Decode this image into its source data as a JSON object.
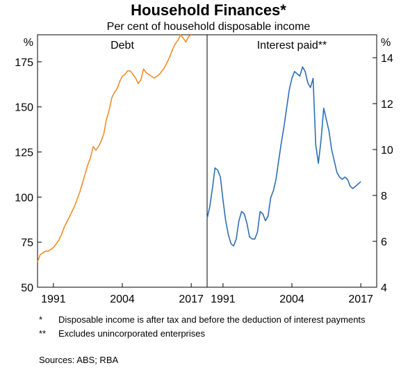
{
  "chart_data": {
    "type": "line",
    "title": "Household Finances*",
    "subtitle": "Per cent of household disposable income",
    "left_axis": {
      "unit": "%",
      "ylim": [
        50,
        190
      ],
      "ticks": [
        50,
        75,
        100,
        125,
        150,
        175
      ]
    },
    "right_axis": {
      "unit": "%",
      "ylim": [
        4,
        15
      ],
      "ticks": [
        4,
        6,
        8,
        10,
        12,
        14
      ]
    },
    "panels": [
      {
        "title": "Debt",
        "axis": "left",
        "xlim": [
          1988,
          2020
        ],
        "x_ticks": [
          "1991",
          "2004",
          "2017"
        ],
        "color": "#f28c28",
        "series": [
          {
            "x": [
              1988.0,
              1988.5,
              1989.0,
              1989.5,
              1990.0,
              1990.5,
              1991.0,
              1991.5,
              1992.0,
              1992.5,
              1993.0,
              1993.5,
              1994.0,
              1994.5,
              1995.0,
              1995.5,
              1996.0,
              1996.5,
              1997.0,
              1997.5,
              1998.0,
              1998.5,
              1999.0,
              1999.5,
              2000.0,
              2000.5,
              2001.0,
              2001.5,
              2002.0,
              2002.5,
              2003.0,
              2003.5,
              2004.0,
              2004.5,
              2005.0,
              2005.5,
              2006.0,
              2006.5,
              2007.0,
              2007.5,
              2008.0,
              2008.5,
              2009.0,
              2009.5,
              2010.0,
              2010.5,
              2011.0,
              2011.5,
              2012.0,
              2012.5,
              2013.0,
              2013.5,
              2014.0,
              2014.5,
              2015.0,
              2015.5,
              2016.0,
              2016.5,
              2017.0
            ],
            "values": [
              64,
              68,
              69,
              70,
              70,
              71,
              72,
              74,
              76,
              79,
              83,
              86,
              89,
              92,
              95,
              99,
              103,
              108,
              113,
              118,
              122,
              128,
              126,
              128,
              131,
              135,
              143,
              148,
              155,
              158,
              160,
              164,
              167,
              168,
              170,
              170,
              168,
              166,
              163,
              165,
              171,
              169,
              168,
              167,
              166,
              167,
              168,
              170,
              172,
              175,
              178,
              182,
              185,
              187,
              190,
              188,
              186,
              189,
              190
            ]
          }
        ]
      },
      {
        "title": "Interest paid**",
        "axis": "right",
        "xlim": [
          1988,
          2020
        ],
        "x_ticks": [
          "1991",
          "2004",
          "2017"
        ],
        "color": "#2e6db4",
        "series": [
          {
            "x": [
              1988.0,
              1988.5,
              1989.0,
              1989.5,
              1990.0,
              1990.5,
              1991.0,
              1991.5,
              1992.0,
              1992.5,
              1993.0,
              1993.5,
              1994.0,
              1994.5,
              1995.0,
              1995.5,
              1996.0,
              1996.5,
              1997.0,
              1997.5,
              1998.0,
              1998.5,
              1999.0,
              1999.5,
              2000.0,
              2000.5,
              2001.0,
              2001.5,
              2002.0,
              2002.5,
              2003.0,
              2003.5,
              2004.0,
              2004.5,
              2005.0,
              2005.5,
              2006.0,
              2006.5,
              2007.0,
              2007.5,
              2008.0,
              2008.5,
              2009.0,
              2009.5,
              2010.0,
              2010.5,
              2011.0,
              2011.5,
              2012.0,
              2012.5,
              2013.0,
              2013.5,
              2014.0,
              2014.5,
              2015.0,
              2015.5,
              2016.0,
              2016.5,
              2017.0
            ],
            "values": [
              7.0,
              7.5,
              8.3,
              9.2,
              9.1,
              8.8,
              7.8,
              6.9,
              6.3,
              5.9,
              5.8,
              6.1,
              6.9,
              7.3,
              7.2,
              6.8,
              6.2,
              6.1,
              6.1,
              6.4,
              7.3,
              7.2,
              6.9,
              7.1,
              7.9,
              8.2,
              8.7,
              9.5,
              10.3,
              11.0,
              11.8,
              12.6,
              13.1,
              13.4,
              13.3,
              13.2,
              13.6,
              13.4,
              12.9,
              12.7,
              13.1,
              10.2,
              9.4,
              10.4,
              11.8,
              11.3,
              10.8,
              10.0,
              9.5,
              9.0,
              8.8,
              8.7,
              8.8,
              8.7,
              8.4,
              8.3,
              8.4,
              8.5,
              8.6
            ]
          }
        ]
      }
    ],
    "grid": false,
    "legend": "none"
  },
  "notes": [
    {
      "marker": "*",
      "text": "Disposable income is after tax and before the deduction of interest payments"
    },
    {
      "marker": "**",
      "text": "Excludes unincorporated enterprises"
    }
  ],
  "sources": "Sources: ABS; RBA"
}
